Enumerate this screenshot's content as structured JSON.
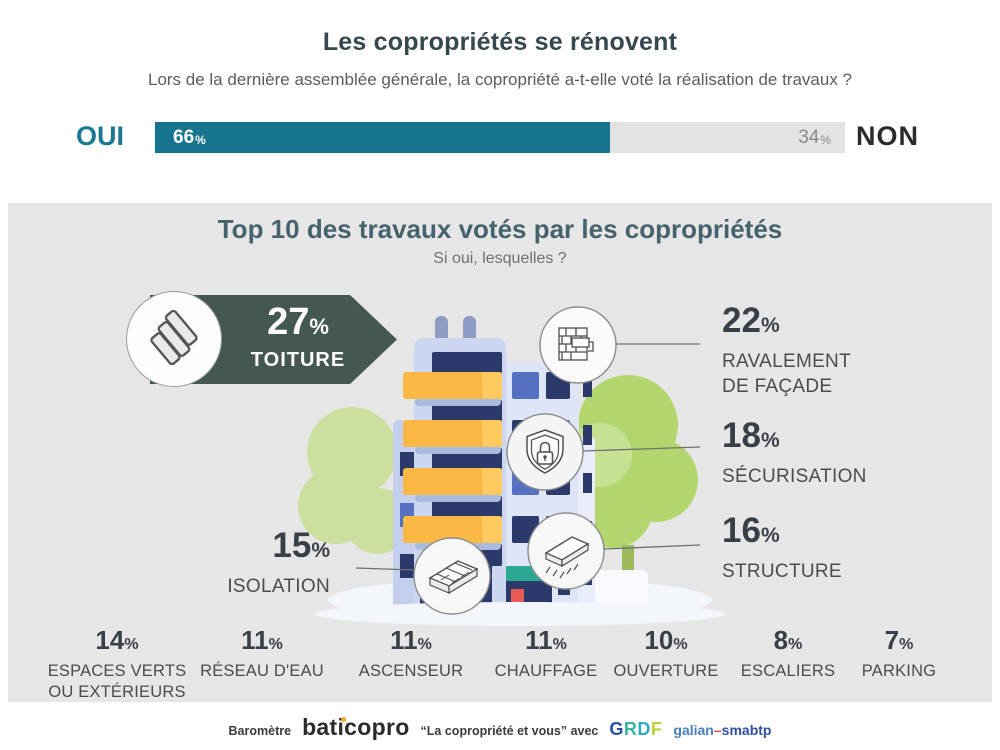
{
  "header": {
    "title": "Les copropriétés se rénovent",
    "question": "Lors de la dernière assemblée générale, la copropriété a-t-elle voté la réalisation de travaux ?"
  },
  "vote": {
    "yes_label": "OUI",
    "yes_value": "66",
    "no_label": "NON",
    "no_value": "34"
  },
  "misc": {
    "pct": "%"
  },
  "panel": {
    "title": "Top 10 des travaux votés par les copropriétés",
    "subtitle": "Si oui, lesquelles ?"
  },
  "featured": {
    "toiture": {
      "value": "27",
      "label": "TOITURE"
    },
    "ravalement": {
      "value": "22",
      "line1": "RAVALEMENT",
      "line2": "DE FAÇADE"
    },
    "securisation": {
      "value": "18",
      "label": "SÉCURISATION"
    },
    "structure": {
      "value": "16",
      "label": "STRUCTURE"
    },
    "isolation": {
      "value": "15",
      "label": "ISOLATION"
    }
  },
  "bottom_row": [
    {
      "value": "14",
      "line1": "ESPACES VERTS",
      "line2": "OU EXTÉRIEURS"
    },
    {
      "value": "11",
      "line1": "RÉSEAU D'EAU"
    },
    {
      "value": "11",
      "line1": "ASCENSEUR"
    },
    {
      "value": "11",
      "line1": "CHAUFFAGE"
    },
    {
      "value": "10",
      "line1": "OUVERTURE"
    },
    {
      "value": "8",
      "line1": "ESCALIERS"
    },
    {
      "value": "7",
      "line1": "PARKING"
    }
  ],
  "footer": {
    "prefix": "Baromètre",
    "brand": "baticopro",
    "tagline": "“La copropriété et vous” avec",
    "logo_grdf": [
      "G",
      "R",
      "D",
      "F"
    ],
    "logo_galian": "galian",
    "logo_dash": "–",
    "logo_smabtp": "smabtp"
  },
  "colors": {
    "accent_teal": "#17748f",
    "banner_green": "#45584f",
    "panel_bg": "#e6e6e7",
    "balcony_orange": "#f9b843",
    "window_navy": "#2b3a6b",
    "tree_green": "#b2d56e",
    "bar_gray": "#e3e3e3"
  },
  "chart_data": {
    "type": "bar",
    "title": "Les copropriétés se rénovent",
    "question": "Lors de la dernière assemblée générale, la copropriété a-t-elle voté la réalisation de travaux ?",
    "unit": "%",
    "vote_series": {
      "categories": [
        "OUI",
        "NON"
      ],
      "values": [
        66,
        34
      ]
    },
    "top10_title": "Top 10 des travaux votés par les copropriétés",
    "top10_subtitle": "Si oui, lesquelles ?",
    "top10": [
      {
        "label": "TOITURE",
        "value": 27
      },
      {
        "label": "RAVALEMENT DE FAÇADE",
        "value": 22
      },
      {
        "label": "SÉCURISATION",
        "value": 18
      },
      {
        "label": "STRUCTURE",
        "value": 16
      },
      {
        "label": "ISOLATION",
        "value": 15
      },
      {
        "label": "ESPACES VERTS OU EXTÉRIEURS",
        "value": 14
      },
      {
        "label": "RÉSEAU D'EAU",
        "value": 11
      },
      {
        "label": "ASCENSEUR",
        "value": 11
      },
      {
        "label": "CHAUFFAGE",
        "value": 11
      },
      {
        "label": "OUVERTURE",
        "value": 10
      },
      {
        "label": "ESCALIERS",
        "value": 8
      },
      {
        "label": "PARKING",
        "value": 7
      }
    ]
  }
}
